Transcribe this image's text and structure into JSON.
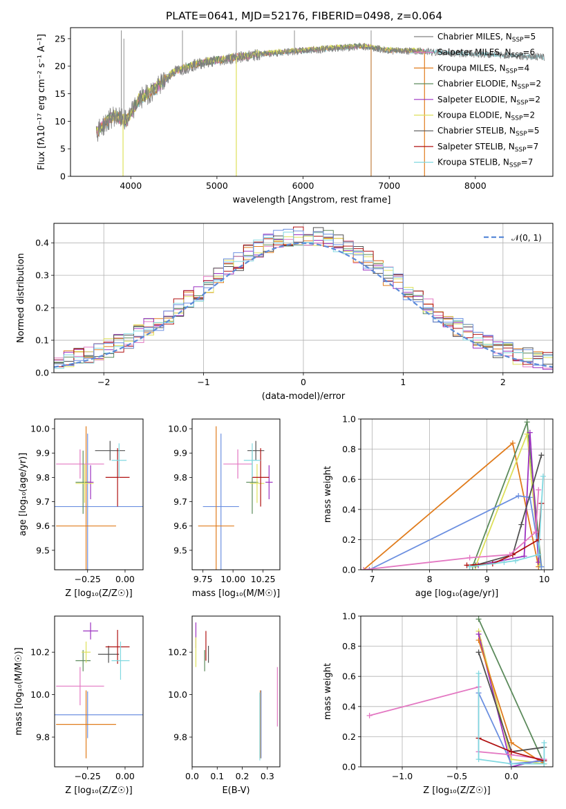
{
  "figure": {
    "title": "PLATE=0641, MJD=52176, FIBERID=0498, z=0.064"
  },
  "legend_entries": [
    {
      "name": "Chabrier MILES",
      "nssp": "5",
      "color": "#808080"
    },
    {
      "name": "Salpeter MILES",
      "nssp": "6",
      "color": "#e377c2"
    },
    {
      "name": "Kroupa MILES",
      "nssp": "4",
      "color": "#e07b1b"
    },
    {
      "name": "Chabrier ELODIE",
      "nssp": "2",
      "color": "#5b8a5b"
    },
    {
      "name": "Salpeter ELODIE",
      "nssp": "2",
      "color": "#9b30c0"
    },
    {
      "name": "Kroupa ELODIE",
      "nssp": "2",
      "color": "#dde05a"
    },
    {
      "name": "Chabrier STELIB",
      "nssp": "5",
      "color": "#505050"
    },
    {
      "name": "Salpeter STELIB",
      "nssp": "7",
      "color": "#b01010"
    },
    {
      "name": "Kroupa STELIB",
      "nssp": "7",
      "color": "#80d8e0"
    }
  ],
  "chart_data": [
    {
      "id": "spectrum",
      "type": "line",
      "xlabel": "wavelength [Angstrom, rest frame]",
      "ylabel": "Flux [fλ10⁻¹⁷ erg cm⁻² s⁻¹ A⁻¹]",
      "xlim": [
        3300,
        8900
      ],
      "ylim": [
        0,
        27
      ],
      "xticks": [
        4000,
        5000,
        6000,
        7000,
        8000
      ],
      "yticks": [
        0,
        5,
        10,
        15,
        20,
        25
      ],
      "continuum": {
        "x": [
          3600,
          3800,
          3950,
          4100,
          4300,
          4500,
          4800,
          5200,
          5600,
          6000,
          6400,
          6700,
          7000,
          7400,
          7800,
          8200,
          8600,
          8800
        ],
        "y": [
          8,
          11,
          10,
          14,
          16,
          19,
          20.5,
          21.5,
          22.3,
          22.8,
          23.3,
          23.6,
          22.8,
          22.7,
          22.3,
          22.1,
          21.8,
          21.6
        ]
      },
      "spikes": [
        {
          "x": 3890,
          "top": 26.5
        },
        {
          "x": 3920,
          "top": 25
        },
        {
          "x": 4600,
          "top": 26.5
        },
        {
          "x": 5225,
          "top": 26.5
        },
        {
          "x": 5900,
          "top": 26.5
        },
        {
          "x": 6790,
          "top": 26.5
        }
      ],
      "drops": [
        {
          "x": 3910,
          "bottom": 0
        },
        {
          "x": 5225,
          "bottom": 0
        },
        {
          "x": 6790,
          "bottom": 0
        },
        {
          "x": 7410,
          "bottom": 0
        }
      ]
    },
    {
      "id": "residuals",
      "type": "step",
      "xlabel": "(data-model)/error",
      "ylabel": "Normed distribution",
      "xlim": [
        -2.5,
        2.5
      ],
      "ylim": [
        0,
        0.46
      ],
      "xticks": [
        -2,
        -1,
        0,
        1,
        2
      ],
      "yticks": [
        0.0,
        0.1,
        0.2,
        0.3,
        0.4
      ],
      "reference_label": "𝒩(0, 1)",
      "bin_width": 0.1
    },
    {
      "id": "age_vs_Z",
      "type": "errorbar",
      "xlabel": "Z [log₁₀(Z/Z☉)]",
      "ylabel": "age  [log₁₀(age/yr)]",
      "xlim": [
        -0.47,
        0.12
      ],
      "ylim": [
        9.42,
        10.04
      ],
      "xticks": [
        -0.25,
        0.0
      ],
      "xticklabels": [
        "−0.25",
        "0.00"
      ],
      "yticks": [
        9.5,
        9.6,
        9.7,
        9.8,
        9.9,
        10.0
      ],
      "points": [
        {
          "x": -0.25,
          "xerr": 0.37,
          "y": 9.68,
          "yerr": 0.3,
          "color": "#6b8fe0"
        },
        {
          "x": -0.26,
          "xerr": 0.2,
          "y": 9.6,
          "yerr": 0.41,
          "color": "#e07b1b"
        },
        {
          "x": -0.3,
          "xerr": 0.16,
          "y": 9.855,
          "yerr": 0.06,
          "color": "#e377c2"
        },
        {
          "x": -0.28,
          "xerr": 0.05,
          "y": 9.78,
          "yerr": 0.13,
          "color": "#5b8a5b"
        },
        {
          "x": -0.23,
          "xerr": 0.02,
          "y": 9.78,
          "yerr": 0.07,
          "color": "#9b30c0"
        },
        {
          "x": -0.27,
          "xerr": 0.06,
          "y": 9.775,
          "yerr": 0.08,
          "color": "#dde05a"
        },
        {
          "x": -0.1,
          "xerr": 0.1,
          "y": 9.91,
          "yerr": 0.04,
          "color": "#505050"
        },
        {
          "x": -0.05,
          "xerr": 0.08,
          "y": 9.8,
          "yerr": 0.12,
          "color": "#b01010"
        },
        {
          "x": -0.04,
          "xerr": 0.05,
          "y": 9.87,
          "yerr": 0.07,
          "color": "#80d8e0"
        }
      ]
    },
    {
      "id": "age_vs_mass",
      "type": "errorbar",
      "xlabel": "mass [log₁₀(M/M☉)]",
      "ylabel": "",
      "xlim": [
        9.66,
        10.39
      ],
      "ylim": [
        9.42,
        10.04
      ],
      "xticks": [
        9.75,
        10.0,
        10.25
      ],
      "xticklabels": [
        "9.75",
        "10.00",
        "10.25"
      ],
      "yticks": [
        9.5,
        9.6,
        9.7,
        9.8,
        9.9,
        10.0
      ],
      "points": [
        {
          "x": 9.9,
          "xerr": 0.15,
          "y": 9.68,
          "yerr": 0.3,
          "color": "#6b8fe0"
        },
        {
          "x": 9.86,
          "xerr": 0.15,
          "y": 9.6,
          "yerr": 0.41,
          "color": "#e07b1b"
        },
        {
          "x": 10.04,
          "xerr": 0.12,
          "y": 9.855,
          "yerr": 0.06,
          "color": "#e377c2"
        },
        {
          "x": 10.16,
          "xerr": 0.05,
          "y": 9.78,
          "yerr": 0.13,
          "color": "#5b8a5b"
        },
        {
          "x": 10.3,
          "xerr": 0.03,
          "y": 9.78,
          "yerr": 0.07,
          "color": "#9b30c0"
        },
        {
          "x": 10.2,
          "xerr": 0.06,
          "y": 9.775,
          "yerr": 0.08,
          "color": "#dde05a"
        },
        {
          "x": 10.19,
          "xerr": 0.07,
          "y": 9.91,
          "yerr": 0.04,
          "color": "#505050"
        },
        {
          "x": 10.23,
          "xerr": 0.07,
          "y": 9.8,
          "yerr": 0.12,
          "color": "#b01010"
        },
        {
          "x": 10.16,
          "xerr": 0.07,
          "y": 9.87,
          "yerr": 0.07,
          "color": "#80d8e0"
        }
      ]
    },
    {
      "id": "weight_vs_age",
      "type": "line",
      "xlabel": "age  [log₁₀(age/yr)]",
      "ylabel": "mass weight",
      "xlim": [
        6.8,
        10.15
      ],
      "ylim": [
        0,
        1.0
      ],
      "xticks": [
        7,
        8,
        9,
        10
      ],
      "yticks": [
        0.0,
        0.2,
        0.4,
        0.6,
        0.8,
        1.0
      ],
      "series": [
        {
          "color": "#e07b1b",
          "x": [
            6.85,
            9.45,
            9.9
          ],
          "y": [
            0.0,
            0.84,
            0.02
          ]
        },
        {
          "color": "#5b8a5b",
          "x": [
            8.75,
            9.7,
            9.95
          ],
          "y": [
            0.02,
            0.98,
            0.02
          ]
        },
        {
          "color": "#dde05a",
          "x": [
            8.8,
            9.7,
            9.92
          ],
          "y": [
            0.02,
            0.9,
            0.03
          ]
        },
        {
          "color": "#9b30c0",
          "x": [
            8.85,
            9.65,
            9.75,
            9.9
          ],
          "y": [
            0.03,
            0.09,
            0.91,
            0.05
          ]
        },
        {
          "color": "#6b8fe0",
          "x": [
            6.95,
            9.55,
            9.75,
            9.95
          ],
          "y": [
            0.0,
            0.49,
            0.48,
            0.02
          ]
        },
        {
          "color": "#505050",
          "x": [
            8.8,
            9.45,
            9.6,
            9.95
          ],
          "y": [
            0.03,
            0.1,
            0.3,
            0.76
          ]
        },
        {
          "color": "#b01010",
          "x": [
            8.65,
            9.1,
            9.45,
            9.9,
            9.95
          ],
          "y": [
            0.03,
            0.04,
            0.1,
            0.2,
            0.44
          ]
        },
        {
          "color": "#80d8e0",
          "x": [
            8.7,
            9.3,
            9.5,
            9.9,
            9.98
          ],
          "y": [
            0.02,
            0.05,
            0.06,
            0.1,
            0.62
          ]
        },
        {
          "color": "#e377c2",
          "x": [
            6.85,
            8.7,
            9.4,
            9.85,
            9.9
          ],
          "y": [
            0.0,
            0.08,
            0.1,
            0.25,
            0.53
          ]
        }
      ]
    },
    {
      "id": "mass_vs_Z",
      "type": "errorbar",
      "xlabel": "Z [log₁₀(Z/Z☉)]",
      "ylabel": "mass [log₁₀(M/M☉)]",
      "xlim": [
        -0.47,
        0.12
      ],
      "ylim": [
        9.66,
        10.37
      ],
      "xticks": [
        -0.25,
        0.0
      ],
      "xticklabels": [
        "−0.25",
        "0.00"
      ],
      "yticks": [
        9.8,
        10.0,
        10.2
      ],
      "yticklabels": [
        "9.8",
        "10.0",
        "10.2"
      ],
      "points": [
        {
          "x": -0.25,
          "xerr": 0.37,
          "y": 9.905,
          "yerr": 0.11,
          "color": "#6b8fe0"
        },
        {
          "x": -0.26,
          "xerr": 0.2,
          "y": 9.86,
          "yerr": 0.16,
          "color": "#e07b1b"
        },
        {
          "x": -0.3,
          "xerr": 0.16,
          "y": 10.04,
          "yerr": 0.09,
          "color": "#e377c2"
        },
        {
          "x": -0.28,
          "xerr": 0.05,
          "y": 10.16,
          "yerr": 0.05,
          "color": "#5b8a5b"
        },
        {
          "x": -0.23,
          "xerr": 0.05,
          "y": 10.3,
          "yerr": 0.04,
          "color": "#9b30c0"
        },
        {
          "x": -0.26,
          "xerr": 0.03,
          "y": 10.2,
          "yerr": 0.05,
          "color": "#dde05a"
        },
        {
          "x": -0.11,
          "xerr": 0.07,
          "y": 10.19,
          "yerr": 0.04,
          "color": "#505050"
        },
        {
          "x": -0.05,
          "xerr": 0.08,
          "y": 10.225,
          "yerr": 0.08,
          "color": "#b01010"
        },
        {
          "x": -0.03,
          "xerr": 0.06,
          "y": 10.16,
          "yerr": 0.09,
          "color": "#80d8e0"
        }
      ]
    },
    {
      "id": "mass_vs_ebv",
      "type": "errorbar",
      "xlabel": "E(B-V)",
      "ylabel": "",
      "xlim": [
        0.0,
        0.35
      ],
      "ylim": [
        9.66,
        10.37
      ],
      "xticks": [
        0.0,
        0.1,
        0.2,
        0.3
      ],
      "xticklabels": [
        "0.0",
        "0.1",
        "0.2",
        "0.3"
      ],
      "yticks": [
        9.8,
        10.0,
        10.2
      ],
      "yticklabels": [
        "9.8",
        "10.0",
        "10.2"
      ],
      "points": [
        {
          "x": 0.275,
          "xerr": 0,
          "y": 9.86,
          "yerr": 0.16,
          "color": "#6b8fe0"
        },
        {
          "x": 0.272,
          "xerr": 0,
          "y": 9.86,
          "yerr": 0.16,
          "color": "#e07b1b"
        },
        {
          "x": 0.34,
          "xerr": 0,
          "y": 9.99,
          "yerr": 0.14,
          "color": "#e377c2"
        },
        {
          "x": 0.05,
          "xerr": 0,
          "y": 10.16,
          "yerr": 0.05,
          "color": "#5b8a5b"
        },
        {
          "x": 0.015,
          "xerr": 0,
          "y": 10.28,
          "yerr": 0.06,
          "color": "#9b30c0"
        },
        {
          "x": 0.015,
          "xerr": 0,
          "y": 10.2,
          "yerr": 0.07,
          "color": "#dde05a"
        },
        {
          "x": 0.065,
          "xerr": 0,
          "y": 10.19,
          "yerr": 0.04,
          "color": "#505050"
        },
        {
          "x": 0.055,
          "xerr": 0,
          "y": 10.23,
          "yerr": 0.07,
          "color": "#b01010"
        },
        {
          "x": 0.27,
          "xerr": 0,
          "y": 9.85,
          "yerr": 0.16,
          "color": "#80d8e0"
        }
      ]
    },
    {
      "id": "weight_vs_Z",
      "type": "line",
      "xlabel": "Z [log₁₀(Z/Z☉)]",
      "ylabel": "mass weight",
      "xlim": [
        -1.38,
        0.38
      ],
      "ylim": [
        0,
        1.0
      ],
      "xticks": [
        -1.0,
        -0.5,
        0.0
      ],
      "xticklabels": [
        "−1.0",
        "−0.5",
        "0.0"
      ],
      "yticks": [
        0.0,
        0.2,
        0.4,
        0.6,
        0.8,
        1.0
      ],
      "series": [
        {
          "color": "#5b8a5b",
          "x": [
            -0.3,
            0.3
          ],
          "y": [
            0.98,
            0.02
          ]
        },
        {
          "color": "#dde05a",
          "x": [
            -0.3,
            0.0,
            0.3
          ],
          "y": [
            0.9,
            0.05,
            0.02
          ]
        },
        {
          "color": "#9b30c0",
          "x": [
            -0.3,
            0.0,
            0.3
          ],
          "y": [
            0.88,
            0.0,
            0.05
          ]
        },
        {
          "color": "#e07b1b",
          "x": [
            -0.3,
            0.0,
            0.3
          ],
          "y": [
            0.84,
            0.16,
            0.02
          ]
        },
        {
          "color": "#505050",
          "x": [
            -0.3,
            0.0,
            0.3
          ],
          "y": [
            0.76,
            0.1,
            0.13
          ]
        },
        {
          "color": "#6b8fe0",
          "x": [
            -0.3,
            0.0,
            0.3
          ],
          "y": [
            0.49,
            0.02,
            0.04
          ]
        },
        {
          "color": "#e377c2",
          "x": [
            -1.3,
            -0.3,
            -0.3,
            0.0,
            0.3
          ],
          "y": [
            0.34,
            0.53,
            0.1,
            0.08,
            0.05
          ]
        },
        {
          "color": "#b01010",
          "x": [
            -0.3,
            0.0,
            0.3
          ],
          "y": [
            0.19,
            0.1,
            0.04
          ]
        },
        {
          "color": "#80d8e0",
          "x": [
            -0.3,
            -0.3,
            0.0,
            0.3,
            0.3
          ],
          "y": [
            0.62,
            0.05,
            0.02,
            0.02,
            0.16
          ]
        }
      ]
    }
  ]
}
